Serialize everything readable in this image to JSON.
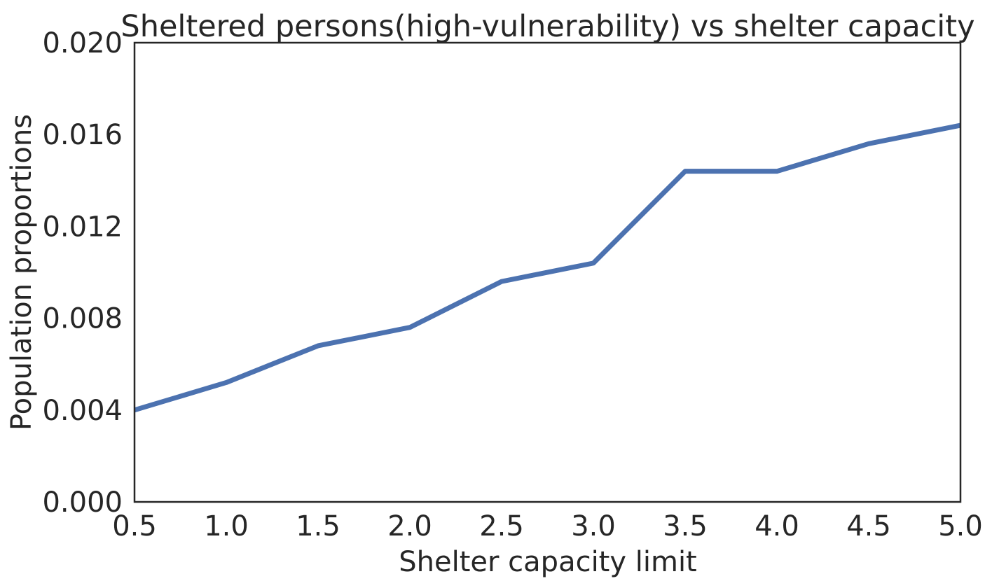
{
  "chart_data": {
    "type": "line",
    "title": "Sheltered persons(high-vulnerability) vs shelter capacity",
    "xlabel": "Shelter capacity limit",
    "ylabel": "Population proportions",
    "xlim": [
      0.5,
      5.0
    ],
    "ylim": [
      0.0,
      0.02
    ],
    "x_ticks": [
      "0.5",
      "1.0",
      "1.5",
      "2.0",
      "2.5",
      "3.0",
      "3.5",
      "4.0",
      "4.5",
      "5.0"
    ],
    "y_ticks": [
      "0.000",
      "0.004",
      "0.008",
      "0.012",
      "0.016",
      "0.020"
    ],
    "grid": false,
    "legend": "none",
    "series": [
      {
        "color": "#4c72b0",
        "x": [
          0.5,
          1.0,
          1.5,
          2.0,
          2.5,
          3.0,
          3.5,
          4.0,
          4.5,
          5.0
        ],
        "y": [
          0.004,
          0.0052,
          0.0068,
          0.0076,
          0.0096,
          0.0104,
          0.0144,
          0.0144,
          0.0156,
          0.0164
        ]
      }
    ]
  }
}
